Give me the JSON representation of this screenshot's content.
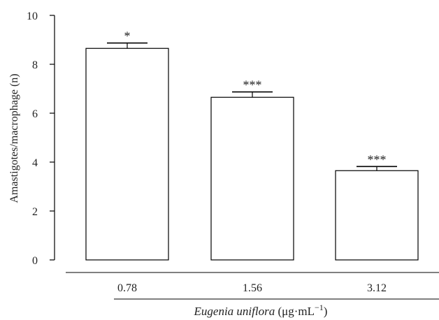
{
  "chart_data": {
    "type": "bar",
    "categories": [
      "0.78",
      "1.56",
      "3.12"
    ],
    "values": [
      8.65,
      6.65,
      3.65
    ],
    "errors": [
      0.22,
      0.22,
      0.17
    ],
    "significance": [
      "*",
      "***",
      "***"
    ],
    "title": "",
    "ylabel": "Amastigotes/macrophage (n)",
    "xlabel": {
      "italic": "Eugenia uniflora",
      "plain": " (μg·mL",
      "sup": "−1",
      "end": ")"
    },
    "ylim": [
      0,
      10
    ],
    "yticks": [
      "0",
      "2",
      "4",
      "6",
      "8",
      "10"
    ],
    "grid": false,
    "colors": {
      "bar_fill": "#ffffff",
      "stroke": "#000000",
      "text": "#222222"
    }
  }
}
